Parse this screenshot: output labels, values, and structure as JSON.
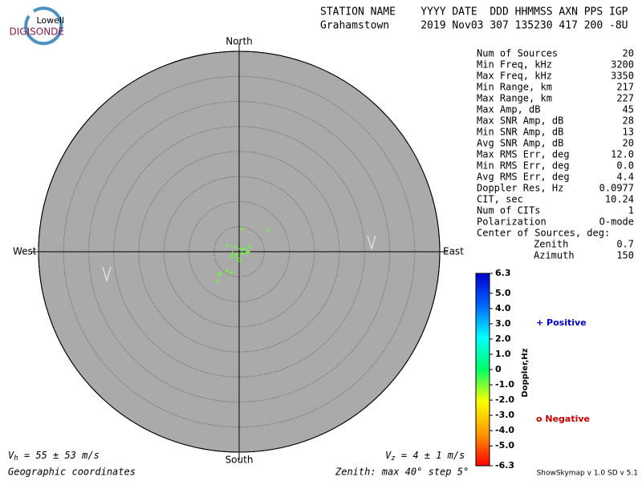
{
  "logo": {
    "top": "Lowell",
    "bottom": "DIGISONDE"
  },
  "header": {
    "line1": "STATION NAME    YYYY DATE  DDD HHMMSS AXN PPS IGP",
    "line2": "Grahamstown     2019 Nov03 307 135230 417 200 -8U"
  },
  "stats": [
    [
      "Num of Sources",
      "20"
    ],
    [
      "Min Freq, kHz",
      "3200"
    ],
    [
      "Max Freq, kHz",
      "3350"
    ],
    [
      "Min Range, km",
      "217"
    ],
    [
      "Max Range, km",
      "227"
    ],
    [
      "Max Amp, dB",
      "45"
    ],
    [
      "Max SNR Amp, dB",
      "28"
    ],
    [
      "Min SNR Amp, dB",
      "13"
    ],
    [
      "Avg SNR Amp, dB",
      "20"
    ],
    [
      "Max RMS Err, deg",
      "12.0"
    ],
    [
      "Min RMS Err, deg",
      "0.0"
    ],
    [
      "Avg RMS Err, deg",
      "4.4"
    ],
    [
      "Doppler Res, Hz",
      "0.0977"
    ],
    [
      "CIT, sec",
      "10.24"
    ],
    [
      "Num of CITs",
      "1"
    ],
    [
      "Polarization",
      "O-mode"
    ]
  ],
  "center": {
    "label": "Center of Sources, deg:",
    "rows": [
      [
        "Zenith",
        "0.7"
      ],
      [
        "Azimuth",
        "150"
      ]
    ]
  },
  "footer": {
    "vh_symbol": "V",
    "vh_sub": "h",
    "vh_text": " = 55 ± 53 m/s",
    "vz_symbol": "V",
    "vz_sub": "z",
    "vz_text": " = 4 ± 1 m/s",
    "coords": "Geographic coordinates",
    "zenith": "Zenith: max 40°  step 5°",
    "version": "ShowSkymap v 1.0  SD v 5.1"
  },
  "chart_data": {
    "type": "scatter",
    "directions": {
      "north": "North",
      "south": "South",
      "east": "East",
      "west": "West"
    },
    "x": [
      0.5,
      5.6,
      -2.4,
      -0.8,
      0.3,
      1.0,
      2.2,
      1.8,
      -1.3,
      -0.5,
      0.6,
      1.4,
      -1.6,
      -0.3,
      0.2,
      -2.4,
      -1.6,
      -3.7,
      -4.0,
      -4.3
    ],
    "values": [
      4.5,
      4.3,
      1.3,
      1.0,
      0.6,
      0.5,
      1.0,
      0,
      -0.3,
      -0.6,
      -0.3,
      -0.3,
      -1.0,
      -1.3,
      -1.9,
      -3.8,
      -4.2,
      -4.3,
      -4.6,
      -5.9
    ],
    "color": "#66ff33",
    "xlim": [
      -40,
      40
    ],
    "ylim": [
      -40,
      40
    ],
    "rings": [
      5,
      10,
      15,
      20,
      25,
      30,
      35,
      40
    ],
    "colorbar": {
      "label": "Doppler,Hz",
      "lim": [
        -6.3,
        6.3
      ],
      "ticks": [
        6.3,
        {
          "value": 5,
          "label": "5.0"
        },
        {
          "value": 4,
          "label": "4.0"
        },
        {
          "value": 3,
          "label": "3.0"
        },
        {
          "value": 2,
          "label": "2.0"
        },
        {
          "value": 1,
          "label": "1.0"
        },
        0,
        {
          "value": -1,
          "label": "-1.0"
        },
        {
          "value": -2,
          "label": "-2.0"
        },
        {
          "value": -3,
          "label": "-3.0"
        },
        {
          "value": -4,
          "label": "-4.0"
        },
        {
          "value": -5,
          "label": "-5.0"
        },
        -6.3
      ],
      "colors": [
        "#0000cc",
        "#0066ff",
        "#00ffff",
        "#00ff66",
        "#ffff00",
        "#ff9900",
        "#ff0000"
      ]
    },
    "legend": {
      "positive": "+ Positive",
      "negative": "o Negative",
      "positive_color": "#0000cc",
      "negative_color": "#cc0000"
    }
  }
}
